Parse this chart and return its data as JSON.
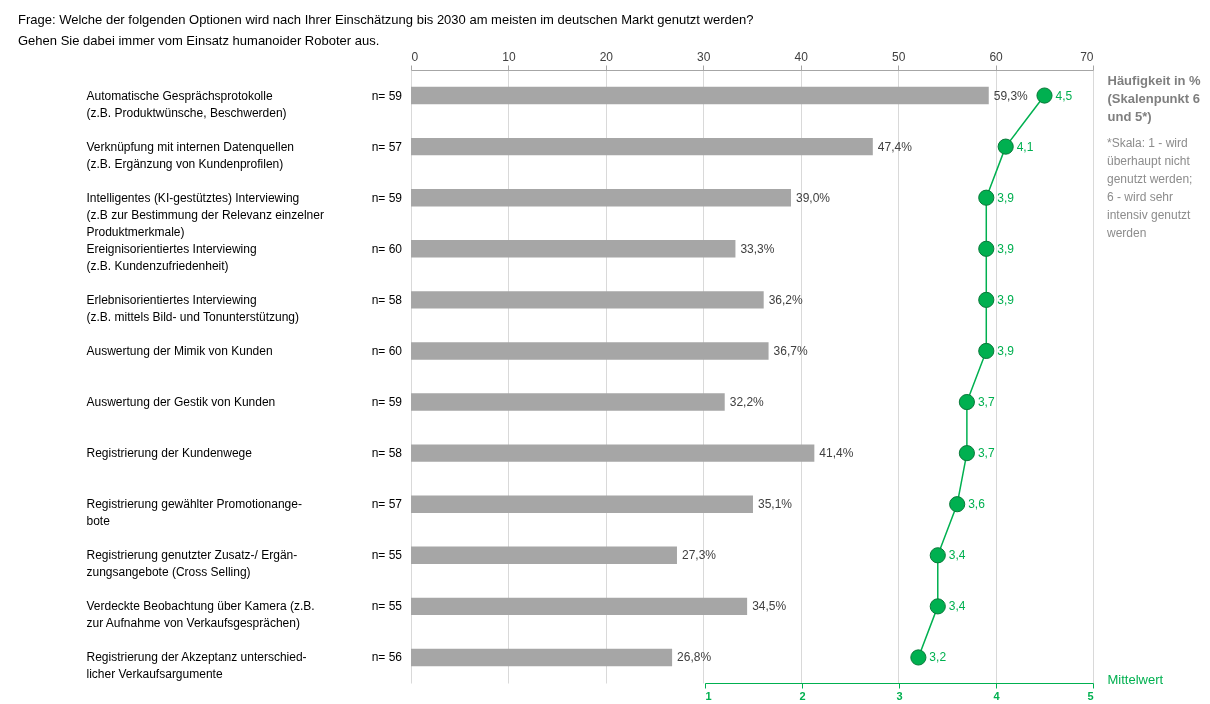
{
  "chart_data": {
    "type": "bar",
    "orientation": "horizontal",
    "title": "Frage: Welche der folgenden Optionen wird nach Ihrer Einschätzung bis 2030 am meisten im deutschen Markt genutzt werden?",
    "subtitle": "Gehen Sie dabei immer vom Einsatz humanoider Roboter aus.",
    "xlabel": "Häufigkeit in %\n(Skalenpunkt 6\nund 5*)",
    "x2label": "Mittelwert",
    "categories": [
      "Automatische Gesprächsprotokolle\n(z.B. Produktwünsche, Beschwerden)",
      "Verknüpfung mit internen Datenquellen\n(z.B. Ergänzung von Kundenprofilen)",
      "Intelligentes (KI-gestütztes) Interviewing\n(z.B zur Bestimmung der Relevanz einzelner\nProduktmerkmale)",
      "Ereignisorientiertes Interviewing\n(z.B. Kundenzufriedenheit)",
      "Erlebnisorientiertes Interviewing\n(z.B. mittels Bild- und Tonunterstützung)",
      "Auswertung der Mimik von Kunden",
      "Auswertung der Gestik von Kunden",
      "Registrierung der Kundenwege",
      "Registrierung gewählter Promotionange-\nbote",
      "Registrierung genutzter Zusatz-/ Ergän-\nzungsangebote (Cross Selling)",
      "Verdeckte Beobachtung über Kamera (z.B.\nzur Aufnahme von Verkaufsgesprächen)",
      "Registrierung der Akzeptanz unterschied-\nlicher Verkaufsargumente"
    ],
    "series": [
      {
        "color": "#a6a6a6",
        "values": [
          59.3,
          47.4,
          39.0,
          33.3,
          36.2,
          36.7,
          32.2,
          41.4,
          35.1,
          27.3,
          34.5,
          26.8
        ],
        "value_labels": [
          "59,3%",
          "47,4%",
          "39,0%",
          "33,3%",
          "36,2%",
          "36,7%",
          "32,2%",
          "41,4%",
          "35,1%",
          "27,3%",
          "34,5%",
          "26,8%"
        ]
      },
      {
        "type": "line",
        "axis": "x2",
        "marker": "circle",
        "color": "#00b050",
        "values": [
          4.5,
          4.1,
          3.9,
          3.9,
          3.9,
          3.9,
          3.7,
          3.7,
          3.6,
          3.4,
          3.4,
          3.2
        ],
        "value_labels": [
          "4,5",
          "4,1",
          "3,9",
          "3,9",
          "3,9",
          "3,9",
          "3,7",
          "3,7",
          "3,6",
          "3,4",
          "3,4",
          "3,2"
        ]
      }
    ],
    "xlim": [
      0,
      70
    ],
    "xticks": [
      0,
      10,
      20,
      30,
      40,
      50,
      60,
      70
    ],
    "x2lim": [
      1,
      5
    ],
    "x2ticks": [
      1,
      2,
      3,
      4,
      5
    ],
    "grid": "x",
    "annotations": [
      "n= 59",
      "n= 57",
      "n= 59",
      "n= 60",
      "n= 58",
      "n= 60",
      "n= 59",
      "n= 58",
      "n= 57",
      "n= 55",
      "n= 55",
      "n= 56",
      "*Skala: 1 - wird\nüberhaupt nicht\ngenutzt werden;\n6 - wird sehr\nintensiv genutzt\nwerden"
    ]
  }
}
